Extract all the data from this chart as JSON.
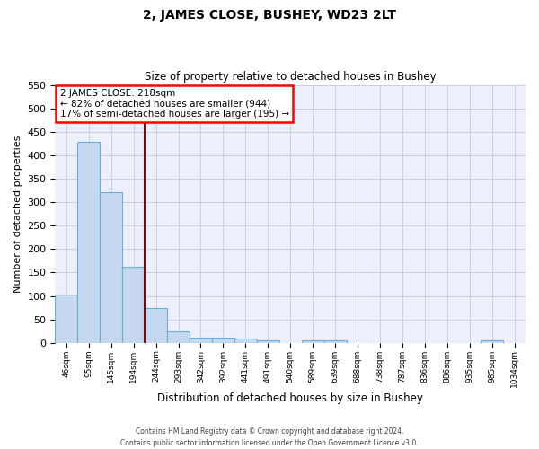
{
  "title": "2, JAMES CLOSE, BUSHEY, WD23 2LT",
  "subtitle": "Size of property relative to detached houses in Bushey",
  "xlabel": "Distribution of detached houses by size in Bushey",
  "ylabel": "Number of detached properties",
  "categories": [
    "46sqm",
    "95sqm",
    "145sqm",
    "194sqm",
    "244sqm",
    "293sqm",
    "342sqm",
    "392sqm",
    "441sqm",
    "491sqm",
    "540sqm",
    "589sqm",
    "639sqm",
    "688sqm",
    "738sqm",
    "787sqm",
    "836sqm",
    "886sqm",
    "935sqm",
    "985sqm",
    "1034sqm"
  ],
  "values": [
    103,
    428,
    321,
    163,
    75,
    25,
    11,
    11,
    10,
    6,
    0,
    5,
    5,
    0,
    0,
    0,
    0,
    0,
    0,
    5,
    0
  ],
  "bar_color": "#c5d8f0",
  "bar_edge_color": "#6baed6",
  "grid_color": "#c8c8d8",
  "background_color": "#ffffff",
  "plot_bg_color": "#edf0fb",
  "annotation_text": "2 JAMES CLOSE: 218sqm\n← 82% of detached houses are smaller (944)\n17% of semi-detached houses are larger (195) →",
  "footer_line1": "Contains HM Land Registry data © Crown copyright and database right 2024.",
  "footer_line2": "Contains public sector information licensed under the Open Government Licence v3.0.",
  "ylim": [
    0,
    550
  ],
  "yticks": [
    0,
    50,
    100,
    150,
    200,
    250,
    300,
    350,
    400,
    450,
    500,
    550
  ]
}
